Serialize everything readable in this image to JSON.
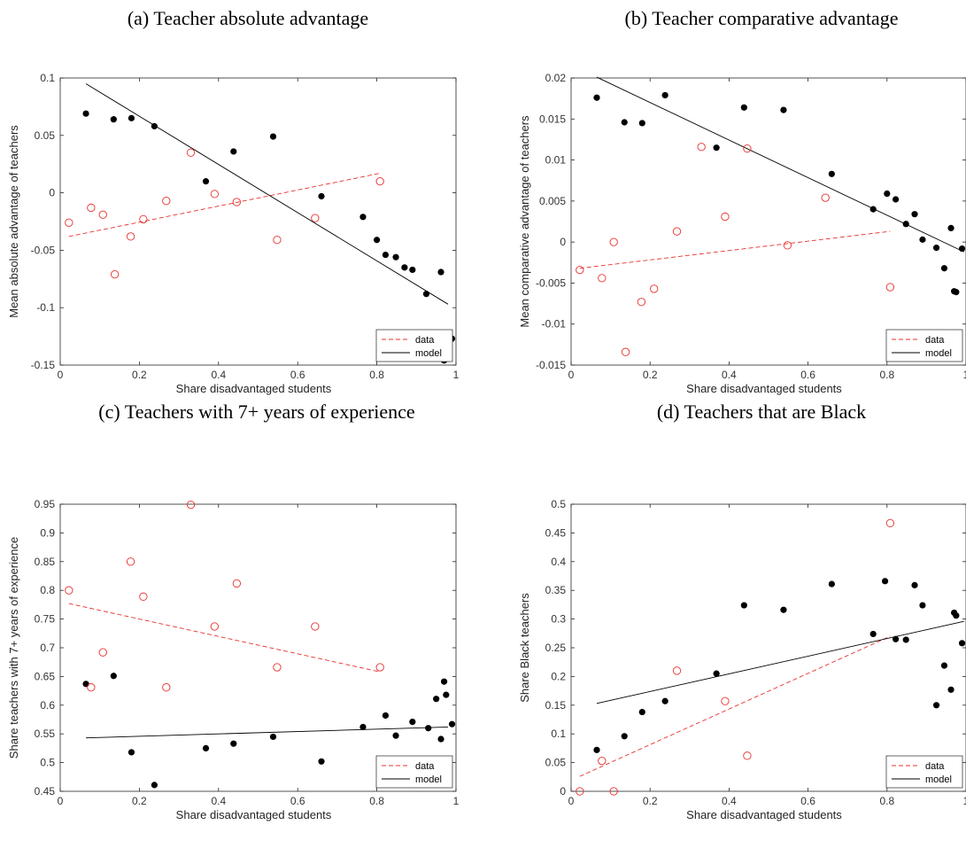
{
  "colors": {
    "data": "#e8302c",
    "model": "#000000"
  },
  "chart_data": [
    {
      "type": "scatter",
      "title": "(a) Teacher absolute advantage",
      "xlabel": "Share disadvantaged students",
      "ylabel": "Mean absolute advantage of teachers",
      "xlim": [
        0,
        1
      ],
      "ylim": [
        -0.15,
        0.1
      ],
      "xticks": [
        "0",
        "0.2",
        "0.4",
        "0.6",
        "0.8",
        "1"
      ],
      "yticks": [
        "-0.15",
        "-0.1",
        "-0.05",
        "0",
        "0.05",
        "0.1"
      ],
      "legend": [
        "data",
        "model"
      ],
      "legend_position": "bottom-right",
      "data_points": [
        [
          0.022,
          -0.026
        ],
        [
          0.078,
          -0.013
        ],
        [
          0.108,
          -0.019
        ],
        [
          0.138,
          -0.071
        ],
        [
          0.178,
          -0.038
        ],
        [
          0.21,
          -0.023
        ],
        [
          0.268,
          -0.007
        ],
        [
          0.33,
          0.035
        ],
        [
          0.39,
          -0.001
        ],
        [
          0.446,
          -0.008
        ],
        [
          0.548,
          -0.041
        ],
        [
          0.644,
          -0.022
        ],
        [
          0.808,
          0.01
        ]
      ],
      "data_fit": [
        [
          0.022,
          -0.038
        ],
        [
          0.808,
          0.017
        ]
      ],
      "model_points": [
        [
          0.065,
          0.069
        ],
        [
          0.135,
          0.064
        ],
        [
          0.18,
          0.065
        ],
        [
          0.238,
          0.058
        ],
        [
          0.368,
          0.01
        ],
        [
          0.438,
          0.036
        ],
        [
          0.538,
          0.049
        ],
        [
          0.66,
          -0.003
        ],
        [
          0.765,
          -0.021
        ],
        [
          0.8,
          -0.041
        ],
        [
          0.822,
          -0.054
        ],
        [
          0.848,
          -0.056
        ],
        [
          0.87,
          -0.065
        ],
        [
          0.89,
          -0.067
        ],
        [
          0.925,
          -0.088
        ],
        [
          0.962,
          -0.069
        ],
        [
          0.97,
          -0.146
        ],
        [
          0.98,
          -0.128
        ],
        [
          0.99,
          -0.127
        ]
      ],
      "model_fit": [
        [
          0.065,
          0.095
        ],
        [
          0.98,
          -0.097
        ]
      ]
    },
    {
      "type": "scatter",
      "title": "(b) Teacher comparative advantage",
      "xlabel": "Share disadvantaged students",
      "ylabel": "Mean comparative advantage of teachers",
      "xlim": [
        0,
        1
      ],
      "ylim": [
        -0.015,
        0.02
      ],
      "xticks": [
        "0",
        "0.2",
        "0.4",
        "0.6",
        "0.8",
        "1"
      ],
      "yticks": [
        "-0.015",
        "-0.01",
        "-0.005",
        "0",
        "0.005",
        "0.01",
        "0.015",
        "0.02"
      ],
      "legend": [
        "data",
        "model"
      ],
      "legend_position": "bottom-right",
      "data_points": [
        [
          0.022,
          -0.0034
        ],
        [
          0.078,
          -0.0044
        ],
        [
          0.108,
          0.0
        ],
        [
          0.138,
          -0.0134
        ],
        [
          0.178,
          -0.0073
        ],
        [
          0.21,
          -0.0057
        ],
        [
          0.268,
          0.0013
        ],
        [
          0.33,
          0.0116
        ],
        [
          0.39,
          0.0031
        ],
        [
          0.446,
          0.0114
        ],
        [
          0.548,
          -0.0004
        ],
        [
          0.644,
          0.0054
        ],
        [
          0.808,
          -0.0055
        ]
      ],
      "data_fit": [
        [
          0.022,
          -0.0032
        ],
        [
          0.808,
          0.0013
        ]
      ],
      "model_points": [
        [
          0.065,
          0.0176
        ],
        [
          0.135,
          0.0146
        ],
        [
          0.18,
          0.0145
        ],
        [
          0.238,
          0.0179
        ],
        [
          0.368,
          0.0115
        ],
        [
          0.438,
          0.0164
        ],
        [
          0.538,
          0.0161
        ],
        [
          0.66,
          0.0083
        ],
        [
          0.765,
          0.004
        ],
        [
          0.8,
          0.0059
        ],
        [
          0.822,
          0.0052
        ],
        [
          0.848,
          0.0022
        ],
        [
          0.87,
          0.0034
        ],
        [
          0.89,
          0.0003
        ],
        [
          0.925,
          -0.0007
        ],
        [
          0.945,
          -0.0032
        ],
        [
          0.962,
          0.0017
        ],
        [
          0.97,
          -0.006
        ],
        [
          0.975,
          -0.0061
        ],
        [
          0.99,
          -0.0008
        ]
      ],
      "model_fit": [
        [
          0.065,
          0.0201
        ],
        [
          0.995,
          -0.0012
        ]
      ]
    },
    {
      "type": "scatter",
      "title": "(c) Teachers with 7+ years of experience",
      "xlabel": "Share disadvantaged students",
      "ylabel": "Share teachers with 7+ years of experience",
      "xlim": [
        0,
        1
      ],
      "ylim": [
        0.45,
        0.95
      ],
      "xticks": [
        "0",
        "0.2",
        "0.4",
        "0.6",
        "0.8",
        "1"
      ],
      "yticks": [
        "0.45",
        "0.5",
        "0.55",
        "0.6",
        "0.65",
        "0.7",
        "0.75",
        "0.8",
        "0.85",
        "0.9",
        "0.95"
      ],
      "legend": [
        "data",
        "model"
      ],
      "legend_position": "bottom-right",
      "data_points": [
        [
          0.022,
          0.8
        ],
        [
          0.078,
          0.631
        ],
        [
          0.108,
          0.692
        ],
        [
          0.178,
          0.85
        ],
        [
          0.21,
          0.789
        ],
        [
          0.268,
          0.631
        ],
        [
          0.33,
          0.949
        ],
        [
          0.39,
          0.737
        ],
        [
          0.446,
          0.812
        ],
        [
          0.548,
          0.666
        ],
        [
          0.644,
          0.737
        ],
        [
          0.808,
          0.666
        ]
      ],
      "data_fit": [
        [
          0.022,
          0.777
        ],
        [
          0.808,
          0.658
        ]
      ],
      "model_points": [
        [
          0.065,
          0.637
        ],
        [
          0.135,
          0.651
        ],
        [
          0.18,
          0.518
        ],
        [
          0.238,
          0.461
        ],
        [
          0.368,
          0.525
        ],
        [
          0.438,
          0.533
        ],
        [
          0.538,
          0.545
        ],
        [
          0.66,
          0.502
        ],
        [
          0.765,
          0.562
        ],
        [
          0.822,
          0.582
        ],
        [
          0.848,
          0.547
        ],
        [
          0.89,
          0.571
        ],
        [
          0.93,
          0.56
        ],
        [
          0.95,
          0.611
        ],
        [
          0.962,
          0.541
        ],
        [
          0.97,
          0.641
        ],
        [
          0.975,
          0.618
        ],
        [
          0.99,
          0.567
        ]
      ],
      "model_fit": [
        [
          0.065,
          0.543
        ],
        [
          0.98,
          0.562
        ]
      ]
    },
    {
      "type": "scatter",
      "title": "(d) Teachers that are Black",
      "xlabel": "Share disadvantaged students",
      "ylabel": "Share Black teachers",
      "xlim": [
        0,
        1
      ],
      "ylim": [
        0,
        0.5
      ],
      "xticks": [
        "0",
        "0.2",
        "0.4",
        "0.6",
        "0.8",
        "1"
      ],
      "yticks": [
        "0",
        "0.05",
        "0.1",
        "0.15",
        "0.2",
        "0.25",
        "0.3",
        "0.35",
        "0.4",
        "0.45",
        "0.5"
      ],
      "legend": [
        "data",
        "model"
      ],
      "legend_position": "bottom-right",
      "data_points": [
        [
          0.022,
          0.0
        ],
        [
          0.078,
          0.053
        ],
        [
          0.108,
          0.0
        ],
        [
          0.268,
          0.21
        ],
        [
          0.39,
          0.157
        ],
        [
          0.446,
          0.062
        ],
        [
          0.808,
          0.467
        ]
      ],
      "data_fit": [
        [
          0.022,
          0.026
        ],
        [
          0.808,
          0.27
        ]
      ],
      "model_points": [
        [
          0.065,
          0.072
        ],
        [
          0.135,
          0.096
        ],
        [
          0.18,
          0.138
        ],
        [
          0.238,
          0.157
        ],
        [
          0.368,
          0.205
        ],
        [
          0.438,
          0.324
        ],
        [
          0.538,
          0.316
        ],
        [
          0.66,
          0.361
        ],
        [
          0.765,
          0.274
        ],
        [
          0.795,
          0.366
        ],
        [
          0.822,
          0.265
        ],
        [
          0.848,
          0.264
        ],
        [
          0.87,
          0.359
        ],
        [
          0.89,
          0.324
        ],
        [
          0.925,
          0.15
        ],
        [
          0.945,
          0.219
        ],
        [
          0.962,
          0.177
        ],
        [
          0.97,
          0.311
        ],
        [
          0.975,
          0.306
        ],
        [
          0.99,
          0.258
        ]
      ],
      "model_fit": [
        [
          0.065,
          0.153
        ],
        [
          0.995,
          0.296
        ]
      ]
    }
  ]
}
